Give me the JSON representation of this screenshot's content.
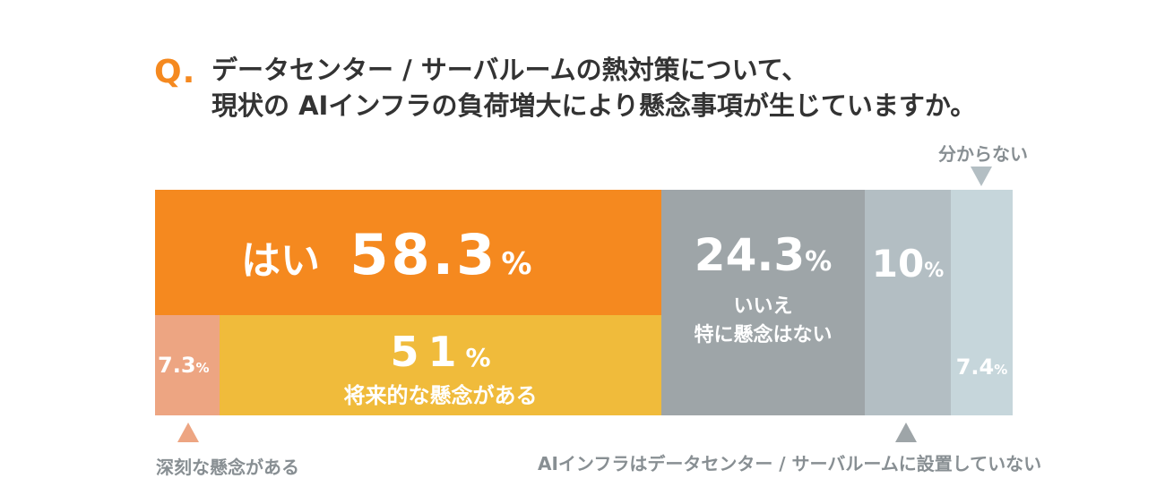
{
  "header": {
    "q_mark": "Q.",
    "question_line1": "データセンター / サーバルームの熱対策について、",
    "question_line2": "現状の AIインフラの負荷増大により懸念事項が生じていますか。"
  },
  "colors": {
    "yes": "#f5891f",
    "serious": "#eda582",
    "future": "#f0bb3b",
    "no": "#9ea5a8",
    "not_installed": "#b3bec3",
    "unknown": "#c6d6db",
    "note_text": "#888f93"
  },
  "labels": {
    "yes_label": "はい",
    "yes_value": "58.3",
    "yes_unit": "%",
    "future_value": "51",
    "future_unit": "%",
    "future_label": "将来的な懸念がある",
    "serious_value": "7.3",
    "serious_unit": "%",
    "no_value": "24.3",
    "no_unit": "%",
    "no_label_line1": "いいえ",
    "no_label_line2": "特に懸念はない",
    "not_installed_value": "10",
    "not_installed_unit": "%",
    "unknown_value": "7.4",
    "unknown_unit": "%"
  },
  "notes": {
    "serious_note": "深刻な懸念がある",
    "not_installed_note": "AIインフラはデータセンター / サーバルームに設置していない",
    "unknown_note": "分からない"
  },
  "chart_data": {
    "type": "bar",
    "orientation": "horizontal-stacked",
    "title": "データセンター / サーバルームの熱対策について、現状の AIインフラの負荷増大により懸念事項が生じていますか。",
    "categories": [
      "はい",
      "いいえ 特に懸念はない",
      "AIインフラはデータセンター / サーバルームに設置していない",
      "分からない"
    ],
    "values": [
      58.3,
      24.3,
      10,
      7.4
    ],
    "breakdown": {
      "はい": [
        {
          "name": "深刻な懸念がある",
          "value": 7.3
        },
        {
          "name": "将来的な懸念がある",
          "value": 51
        }
      ]
    },
    "unit": "%"
  }
}
